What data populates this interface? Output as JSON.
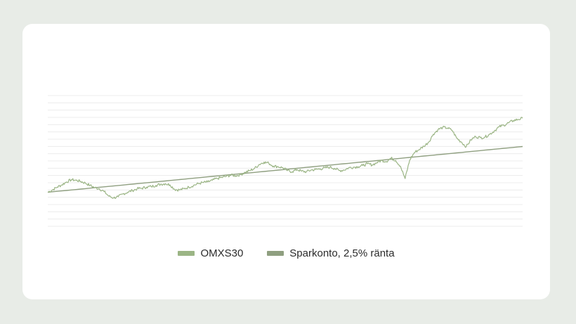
{
  "chart_data": {
    "type": "line",
    "title": "",
    "xlabel": "",
    "ylabel": "",
    "grid": true,
    "grid_lines": 19,
    "legend_position": "bottom-center",
    "series": [
      {
        "name": "OMXS30",
        "color": "#9bb585",
        "values": [
          100,
          104,
          109,
          113,
          118,
          122,
          121,
          119,
          116,
          112,
          108,
          106,
          101,
          93,
          90,
          92,
          97,
          100,
          103,
          106,
          107,
          109,
          110,
          112,
          114,
          115,
          113,
          105,
          104,
          106,
          109,
          112,
          115,
          117,
          118,
          121,
          124,
          126,
          128,
          130,
          129,
          131,
          135,
          138,
          142,
          149,
          153,
          151,
          146,
          145,
          143,
          138,
          136,
          140,
          137,
          136,
          139,
          140,
          141,
          143,
          144,
          142,
          138,
          139,
          143,
          144,
          145,
          147,
          150,
          148,
          152,
          156,
          154,
          160,
          156,
          146,
          124,
          157,
          170,
          175,
          181,
          188,
          202,
          210,
          214,
          213,
          209,
          195,
          188,
          180,
          192,
          198,
          196,
          197,
          202,
          208,
          215,
          218,
          222,
          226,
          228,
          230
        ]
      },
      {
        "name": "Sparkonto, 2,5% ränta",
        "color": "#8f9f80",
        "values": [
          100,
          100.8,
          101.6,
          102.3,
          103.1,
          103.9,
          104.7,
          105.5,
          106.3,
          107.1,
          107.9,
          108.7,
          109.5,
          110.2,
          111,
          111.8,
          112.6,
          113.4,
          114.2,
          115,
          115.8,
          116.6,
          117.4,
          118.2,
          119,
          119.8,
          120.6,
          121.4,
          122.2,
          123,
          123.8,
          124.6,
          125.4,
          126.2,
          127,
          127.8,
          128.6,
          129.4,
          130.2,
          131,
          131.8,
          132.5,
          133.3,
          134.1,
          134.9,
          135.7,
          136.5,
          137.3,
          138.1,
          138.9,
          139.7,
          140.5,
          141.3,
          142.1,
          142.9,
          143.7,
          144.5,
          145.3,
          146.1,
          146.9,
          147.7,
          148.5,
          149.3,
          150,
          150.8,
          151.6,
          152.4,
          153.2,
          154,
          154.8,
          155.6,
          156.4,
          157.2,
          158,
          158.8,
          159.6,
          160.4,
          161.2,
          162,
          162.8,
          163.6,
          164.4,
          165.2,
          166,
          166.8,
          167.6,
          168.4,
          169.2,
          170,
          170.8,
          171.6,
          172.4,
          173.2,
          174,
          174.8,
          175.6,
          176.4,
          177.2,
          178,
          178.8,
          179.6,
          180.4
        ]
      }
    ],
    "ylim": [
      40,
      270
    ]
  }
}
